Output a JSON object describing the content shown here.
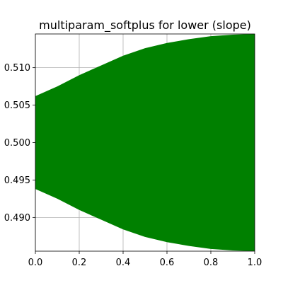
{
  "chart_data": {
    "type": "area",
    "title": "multiparam_softplus for lower (slope)",
    "xlabel": "",
    "ylabel": "",
    "xlim": [
      0.0,
      1.0
    ],
    "ylim": [
      0.4855,
      0.5145
    ],
    "grid": true,
    "x_ticks": [
      0.0,
      0.2,
      0.4,
      0.6,
      0.8,
      1.0
    ],
    "x_tick_labels": [
      "0.0",
      "0.2",
      "0.4",
      "0.6",
      "0.8",
      "1.0"
    ],
    "y_ticks": [
      0.49,
      0.495,
      0.5,
      0.505,
      0.51
    ],
    "y_tick_labels": [
      "0.490",
      "0.495",
      "0.500",
      "0.505",
      "0.510"
    ],
    "fill_color": "#008000",
    "series": [
      {
        "x": [
          0.0,
          0.1,
          0.2,
          0.3,
          0.4,
          0.5,
          0.6,
          0.7,
          0.8,
          0.9,
          1.0
        ],
        "upper": [
          0.5062,
          0.5075,
          0.509,
          0.5103,
          0.5116,
          0.5126,
          0.5133,
          0.5138,
          0.5142,
          0.5144,
          0.5145
        ],
        "lower": [
          0.4938,
          0.4925,
          0.491,
          0.4897,
          0.4884,
          0.4874,
          0.4867,
          0.4862,
          0.4858,
          0.4856,
          0.4855
        ]
      }
    ]
  }
}
